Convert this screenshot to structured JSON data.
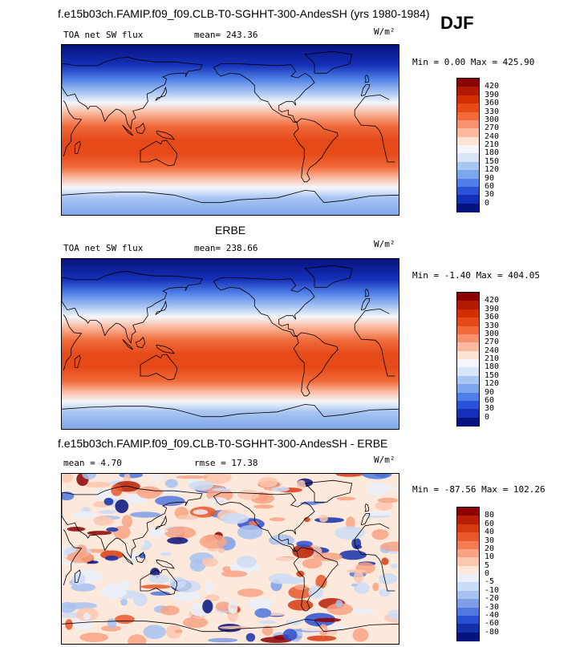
{
  "figure": {
    "main_title": "f.e15b03ch.FAMIP.f09_f09.CLB-T0-SGHHT-300-AndesSH (yrs 1980-1984)",
    "season": "DJF"
  },
  "panels": [
    {
      "variable": "TOA net SW flux",
      "stat_text": "mean= 243.36",
      "units": "W/m²",
      "minmax_text": "Min =   0.00 Max = 425.90",
      "colorbar_labels": [
        "420",
        "390",
        "360",
        "330",
        "300",
        "270",
        "240",
        "210",
        "180",
        "150",
        "120",
        "90",
        "60",
        "30",
        "0"
      ]
    },
    {
      "header": "ERBE",
      "variable": "TOA net SW flux",
      "stat_text": "mean= 238.66",
      "units": "W/m²",
      "minmax_text": "Min =  -1.40 Max = 404.05",
      "colorbar_labels": [
        "420",
        "390",
        "360",
        "330",
        "300",
        "270",
        "240",
        "210",
        "180",
        "150",
        "120",
        "90",
        "60",
        "30",
        "0"
      ]
    },
    {
      "header": "f.e15b03ch.FAMIP.f09_f09.CLB-T0-SGHHT-300-AndesSH - ERBE",
      "stat_text_1": "mean =   4.70",
      "stat_text_2": "rmse =  17.38",
      "units": "W/m²",
      "minmax_text": "Min = -87.56 Max = 102.26",
      "colorbar_labels": [
        "80",
        "60",
        "40",
        "30",
        "20",
        "10",
        "5",
        "0",
        "-5",
        "-10",
        "-20",
        "-30",
        "-40",
        "-60",
        "-80"
      ]
    }
  ],
  "colors": {
    "abs_scale": [
      "#8b0000",
      "#b01a00",
      "#d22f00",
      "#e64a19",
      "#f06a3a",
      "#f79270",
      "#fbb9a0",
      "#fde3d4",
      "#f4f6fb",
      "#d8e4f8",
      "#a9c5f2",
      "#7ea6ec",
      "#4f7fe6",
      "#2a52d8",
      "#1530b8",
      "#06127e"
    ],
    "diff_scale": [
      "#8b0000",
      "#b81d05",
      "#d63b10",
      "#e8582a",
      "#f17c56",
      "#f8a384",
      "#fbc7b0",
      "#fde8dc",
      "#eaf0fa",
      "#ccdcf6",
      "#a7c1f0",
      "#7e9fe8",
      "#4f77de",
      "#2a4fd0",
      "#1430a8",
      "#06127e"
    ]
  }
}
